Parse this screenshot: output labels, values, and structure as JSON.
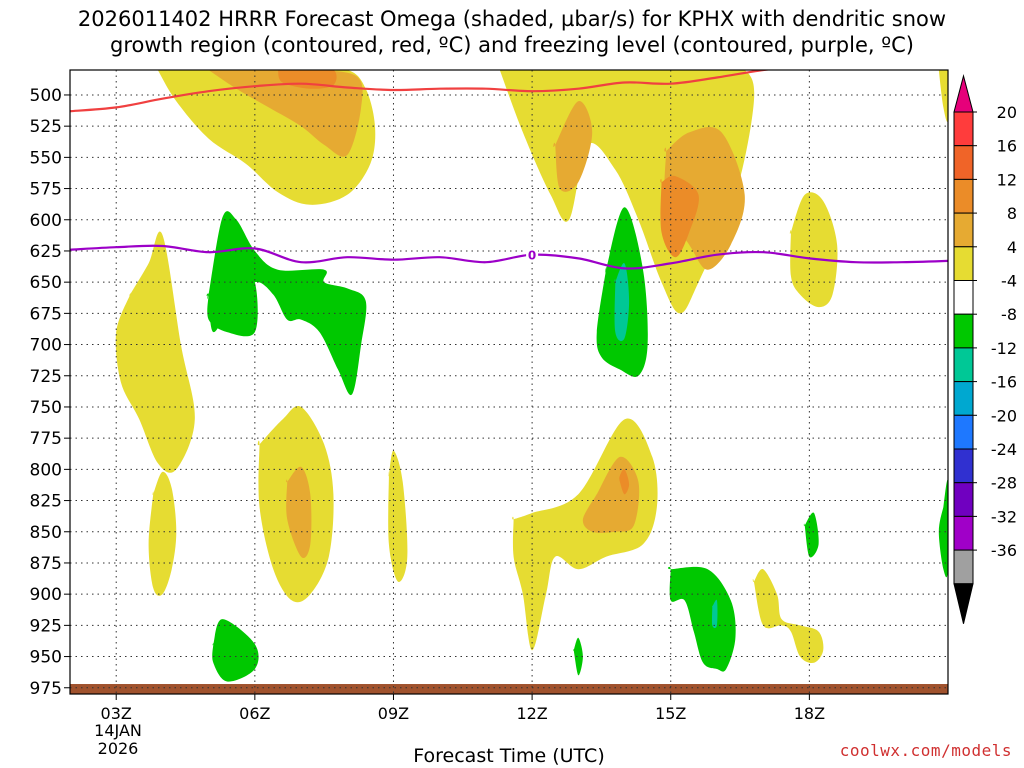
{
  "title": {
    "line1": "2026011402 HRRR Forecast Omega (shaded, µbar/s) for KPHX with dendritic snow",
    "line2": "growth region (contoured, red, ºC) and freezing level (contoured, purple, ºC)"
  },
  "credit": "coolwx.com/models",
  "chart_data": {
    "type": "time-height",
    "title": "2026011402 HRRR Forecast Omega (shaded, µbar/s) for KPHX with dendritic snow growth region (contoured, red, ºC) and freezing level (contoured, purple, ºC)",
    "xlabel": "Forecast Time (UTC)",
    "ylabel": "Pressure (hPa)",
    "x_start_label": "03Z",
    "date_line1": "14JAN",
    "date_line2": "2026",
    "xlim": [
      2,
      21
    ],
    "x_ticks": [
      {
        "hour": 3,
        "label": "03Z"
      },
      {
        "hour": 6,
        "label": "06Z"
      },
      {
        "hour": 9,
        "label": "09Z"
      },
      {
        "hour": 12,
        "label": "12Z"
      },
      {
        "hour": 15,
        "label": "15Z"
      },
      {
        "hour": 18,
        "label": "18Z"
      }
    ],
    "ylim": [
      480,
      980
    ],
    "y_ticks": [
      500,
      525,
      550,
      575,
      600,
      625,
      650,
      675,
      700,
      725,
      750,
      775,
      800,
      825,
      850,
      875,
      900,
      925,
      950,
      975
    ],
    "colorbar": {
      "levels": [
        -36,
        -32,
        -28,
        -24,
        -20,
        -16,
        -12,
        -8,
        -4,
        4,
        8,
        12,
        16,
        20
      ],
      "labels": [
        "20",
        "16",
        "12",
        "8",
        "4",
        "-4",
        "-8",
        "-12",
        "-16",
        "-20",
        "-24",
        "-28",
        "-32",
        "-36"
      ],
      "colors": [
        "#a0a0a0",
        "#a000c8",
        "#7000c0",
        "#3030d0",
        "#1e78ff",
        "#00a8d0",
        "#00c896",
        "#00c800",
        "#ffffff",
        "#e6dc32",
        "#e6aa32",
        "#eb8c28",
        "#f06428",
        "#ff3c3c"
      ],
      "top_color": "#e6007a",
      "bottom_color": "#000000"
    },
    "freezing_level": {
      "contour_label": "0",
      "color": "#9c00c8",
      "hours": [
        2,
        3,
        4,
        5,
        6,
        7,
        8,
        9,
        10,
        11,
        12,
        13,
        14,
        15,
        16,
        17,
        18,
        19,
        20,
        21
      ],
      "pressure": [
        624,
        622,
        621,
        626,
        623,
        634,
        630,
        632,
        630,
        634,
        628,
        631,
        639,
        635,
        628,
        626,
        631,
        634,
        634,
        633
      ]
    },
    "dgz_top": {
      "color": "#f04040",
      "hours": [
        2,
        3,
        4,
        5,
        6,
        7,
        8,
        9,
        10,
        11,
        12,
        13,
        14,
        15,
        16,
        17,
        18,
        19
      ],
      "pressure": [
        513,
        510,
        503,
        497,
        493,
        491,
        494,
        496,
        495,
        495,
        497,
        495,
        490,
        491,
        486,
        480,
        476,
        470
      ]
    },
    "omega_regions": [
      {
        "name": "upper-left-rising",
        "value": 6,
        "hours": [
          3.9,
          4.5,
          5.2,
          6,
          7,
          8,
          8.4,
          8.6,
          8.5,
          8.0,
          7.2,
          6.5,
          5.8,
          5.0,
          4.3,
          3.9
        ],
        "pressure": [
          480,
          480,
          480,
          480,
          480,
          480,
          495,
          525,
          555,
          580,
          588,
          578,
          555,
          535,
          505,
          480
        ]
      },
      {
        "name": "upper-left-core",
        "value": 10,
        "hours": [
          5.0,
          5.6,
          6.4,
          7.2,
          8.2,
          8.3,
          8.0,
          7.5,
          7.0,
          6.3,
          5.6,
          5.0
        ],
        "pressure": [
          480,
          480,
          480,
          480,
          485,
          510,
          548,
          540,
          525,
          510,
          495,
          480
        ]
      },
      {
        "name": "upper-left-peak",
        "value": 14,
        "hours": [
          6.5,
          7.1,
          7.7,
          7.7,
          7.2,
          6.6,
          6.5
        ],
        "pressure": [
          480,
          480,
          480,
          492,
          495,
          490,
          480
        ]
      },
      {
        "name": "left-mid",
        "value": 6,
        "hours": [
          3.3,
          3.7,
          4.0,
          4.4,
          4.7,
          4.3,
          3.9,
          3.5,
          3.1,
          3.0,
          3.3
        ],
        "pressure": [
          660,
          635,
          612,
          700,
          760,
          800,
          795,
          760,
          730,
          690,
          660
        ]
      },
      {
        "name": "left-low",
        "value": 6,
        "hours": [
          3.8,
          4.0,
          4.2,
          4.3,
          4.2,
          4.0,
          3.8,
          3.7,
          3.8
        ],
        "pressure": [
          820,
          802,
          815,
          850,
          880,
          900,
          895,
          860,
          820
        ]
      },
      {
        "name": "green-upper-left",
        "value": -6,
        "hours": [
          5.0,
          5.3,
          5.6,
          6.0,
          6.5,
          7.5,
          7.5,
          8.0,
          8.4,
          8.3,
          8.1,
          7.8,
          7.4,
          7.0,
          6.7,
          6.4,
          6.0,
          5.5,
          5.1,
          5.0
        ],
        "pressure": [
          660,
          598,
          600,
          625,
          640,
          640,
          650,
          655,
          665,
          700,
          740,
          720,
          690,
          680,
          680,
          660,
          650,
          668,
          690,
          660
        ]
      },
      {
        "name": "green-upper-left-lower",
        "value": -6,
        "hours": [
          5.0,
          5.6,
          6.0,
          6.0,
          5.4,
          5.0,
          5.0
        ],
        "pressure": [
          660,
          640,
          650,
          690,
          690,
          680,
          660
        ]
      },
      {
        "name": "mid-left-bump",
        "value": 6,
        "hours": [
          6.1,
          6.6,
          7.0,
          7.5,
          7.7,
          7.6,
          7.2,
          6.8,
          6.4,
          6.1,
          6.1
        ],
        "pressure": [
          780,
          760,
          750,
          780,
          820,
          870,
          900,
          905,
          880,
          830,
          780
        ]
      },
      {
        "name": "mid-left-bump-core",
        "value": 10,
        "hours": [
          6.7,
          7.0,
          7.2,
          7.2,
          7.0,
          6.7,
          6.7
        ],
        "pressure": [
          810,
          798,
          820,
          860,
          870,
          840,
          810
        ]
      },
      {
        "name": "small-9z",
        "value": 6,
        "hours": [
          8.9,
          9.0,
          9.2,
          9.3,
          9.1,
          8.9,
          8.9
        ],
        "pressure": [
          805,
          785,
          810,
          870,
          890,
          860,
          805
        ]
      },
      {
        "name": "green-950",
        "value": -6,
        "hours": [
          5.1,
          5.3,
          6.0,
          6.0,
          5.4,
          5.1,
          5.1
        ],
        "pressure": [
          940,
          920,
          940,
          960,
          970,
          955,
          940
        ]
      },
      {
        "name": "upper-center",
        "value": 6,
        "hours": [
          11.3,
          12.0,
          13.2,
          14.0,
          14.6,
          15.2,
          16.0,
          16.6,
          16.8,
          16.4,
          15.6,
          15.2,
          14.8,
          14.3,
          13.8,
          13.2,
          12.8,
          12.4,
          11.8,
          11.3
        ],
        "pressure": [
          480,
          480,
          480,
          480,
          480,
          480,
          480,
          480,
          505,
          580,
          650,
          675,
          650,
          600,
          560,
          540,
          600,
          580,
          530,
          480
        ]
      },
      {
        "name": "upper-center-core",
        "value": 10,
        "hours": [
          12.5,
          13.0,
          13.3,
          13.0,
          12.6,
          12.5
        ],
        "pressure": [
          540,
          505,
          530,
          570,
          575,
          540
        ]
      },
      {
        "name": "mid-right-core",
        "value": 10,
        "hours": [
          14.9,
          15.4,
          16.1,
          16.6,
          16.3,
          15.8,
          15.4,
          14.9,
          14.9
        ],
        "pressure": [
          545,
          530,
          530,
          580,
          620,
          640,
          620,
          590,
          545
        ]
      },
      {
        "name": "mid-right-peak",
        "value": 14,
        "hours": [
          14.8,
          15.1,
          15.6,
          15.4,
          15.1,
          14.8,
          14.8
        ],
        "pressure": [
          570,
          565,
          580,
          610,
          630,
          610,
          570
        ]
      },
      {
        "name": "green-center",
        "value": -6,
        "hours": [
          13.6,
          14.0,
          14.4,
          14.5,
          14.3,
          13.9,
          13.5,
          13.4,
          13.6
        ],
        "pressure": [
          640,
          590,
          640,
          700,
          725,
          720,
          710,
          690,
          640
        ]
      },
      {
        "name": "green-center-core",
        "value": -10,
        "hours": [
          13.8,
          14.0,
          14.1,
          14.0,
          13.8,
          13.8
        ],
        "pressure": [
          650,
          635,
          665,
          695,
          690,
          650
        ]
      },
      {
        "name": "right-upper",
        "value": 6,
        "hours": [
          17.6,
          17.9,
          18.3,
          18.6,
          18.5,
          18.2,
          17.8,
          17.6,
          17.6
        ],
        "pressure": [
          610,
          580,
          585,
          620,
          660,
          670,
          660,
          645,
          610
        ]
      },
      {
        "name": "center-low",
        "value": 6,
        "hours": [
          11.6,
          12.0,
          13.0,
          14.0,
          14.6,
          14.7,
          14.4,
          13.6,
          13.0,
          12.5,
          12.3,
          12.0,
          11.8,
          11.6,
          11.6
        ],
        "pressure": [
          840,
          835,
          820,
          760,
          790,
          830,
          860,
          870,
          880,
          870,
          900,
          945,
          900,
          870,
          840
        ]
      },
      {
        "name": "center-low-core",
        "value": 10,
        "hours": [
          13.4,
          13.9,
          14.3,
          14.2,
          13.8,
          13.3,
          13.1,
          13.4
        ],
        "pressure": [
          820,
          790,
          810,
          845,
          850,
          850,
          840,
          820
        ]
      },
      {
        "name": "center-low-peak",
        "value": 14,
        "hours": [
          13.9,
          14.0,
          14.1,
          14.0,
          13.9
        ],
        "pressure": [
          805,
          800,
          812,
          820,
          810
        ]
      },
      {
        "name": "green-right-low",
        "value": -6,
        "hours": [
          15.0,
          15.8,
          16.3,
          16.4,
          16.2,
          16.0,
          15.7,
          15.5,
          15.3,
          15.0,
          15.0
        ],
        "pressure": [
          880,
          880,
          905,
          935,
          960,
          960,
          955,
          930,
          905,
          905,
          880
        ]
      },
      {
        "name": "green-right-low-core",
        "value": -10,
        "hours": [
          15.9,
          16.0,
          16.0,
          15.9,
          15.9
        ],
        "pressure": [
          910,
          905,
          925,
          925,
          910
        ]
      },
      {
        "name": "right-small-yellow",
        "value": 6,
        "hours": [
          16.8,
          17.0,
          17.3,
          17.4,
          17.8,
          18.2,
          18.3,
          18.1,
          17.8,
          17.6,
          17.4,
          17.0,
          16.8
        ],
        "pressure": [
          890,
          880,
          900,
          920,
          925,
          930,
          945,
          955,
          950,
          930,
          925,
          925,
          890
        ]
      },
      {
        "name": "green-right-small",
        "value": -6,
        "hours": [
          17.9,
          18.1,
          18.2,
          18.0,
          17.9
        ],
        "pressure": [
          845,
          835,
          860,
          870,
          845
        ]
      },
      {
        "name": "green-far-right",
        "value": -6,
        "hours": [
          20.9,
          21.0,
          21.0,
          20.9,
          20.8,
          20.9
        ],
        "pressure": [
          830,
          810,
          880,
          880,
          850,
          830
        ]
      },
      {
        "name": "yellow-far-right-top",
        "value": 6,
        "hours": [
          20.8,
          21.0,
          21.0,
          20.9,
          20.8
        ],
        "pressure": [
          480,
          480,
          520,
          510,
          480
        ]
      },
      {
        "name": "tiny-green-13z",
        "value": -6,
        "hours": [
          12.9,
          13.0,
          13.1,
          13.0,
          12.9
        ],
        "pressure": [
          945,
          935,
          950,
          965,
          945
        ]
      }
    ],
    "ground": {
      "color": "#a0522d",
      "pressure_top": 972
    }
  }
}
